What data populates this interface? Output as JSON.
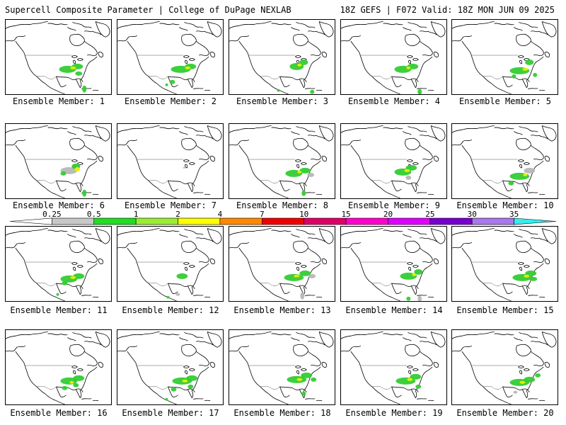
{
  "header": {
    "left": "Supercell Composite Parameter | College of DuPage NEXLAB",
    "right": "18Z GEFS | F072 Valid: 18Z MON JUN 09 2025"
  },
  "members": [
    {
      "label": "Ensemble Member: 1"
    },
    {
      "label": "Ensemble Member: 2"
    },
    {
      "label": "Ensemble Member: 3"
    },
    {
      "label": "Ensemble Member: 4"
    },
    {
      "label": "Ensemble Member: 5"
    },
    {
      "label": "Ensemble Member: 6"
    },
    {
      "label": "Ensemble Member: 7"
    },
    {
      "label": "Ensemble Member: 8"
    },
    {
      "label": "Ensemble Member: 9"
    },
    {
      "label": "Ensemble Member: 10"
    },
    {
      "label": "Ensemble Member: 11"
    },
    {
      "label": "Ensemble Member: 12"
    },
    {
      "label": "Ensemble Member: 13"
    },
    {
      "label": "Ensemble Member: 14"
    },
    {
      "label": "Ensemble Member: 15"
    },
    {
      "label": "Ensemble Member: 16"
    },
    {
      "label": "Ensemble Member: 17"
    },
    {
      "label": "Ensemble Member: 18"
    },
    {
      "label": "Ensemble Member: 19"
    },
    {
      "label": "Ensemble Member: 20"
    }
  ],
  "colorbar": {
    "labels": [
      "0.25",
      "0.5",
      "1",
      "2",
      "4",
      "7",
      "10",
      "15",
      "20",
      "25",
      "30",
      "35"
    ],
    "colors": [
      "#ffffff",
      "#c8c8c8",
      "#22dd22",
      "#99ee33",
      "#ffff00",
      "#ff8800",
      "#ee0000",
      "#dd0066",
      "#ff00cc",
      "#dd00ff",
      "#7700cc",
      "#aa77ee",
      "#33eeee"
    ]
  },
  "colors": {
    "map_lines": "#000000",
    "weak": "#b4b4b4",
    "green": "#33cc33",
    "yellow": "#eeee00",
    "orange": "#ff8800"
  }
}
